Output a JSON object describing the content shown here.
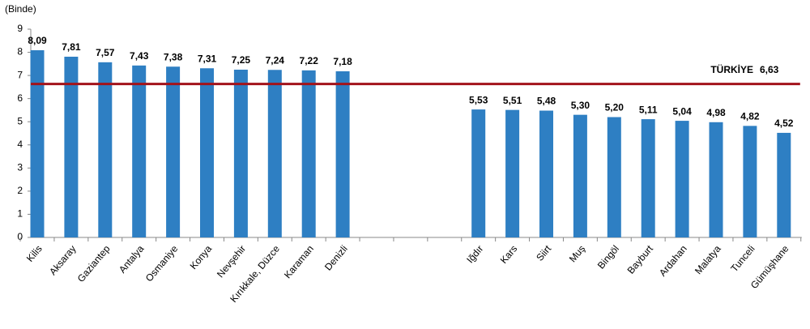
{
  "chart_data": {
    "type": "bar",
    "y_axis_label": "(Binde)",
    "categories": [
      "Kilis",
      "Aksaray",
      "Gaziantep",
      "Antalya",
      "Osmaniye",
      "Konya",
      "Nevşehir",
      "Kırıkkale, Düzce",
      "Karaman",
      "Denizli",
      null,
      null,
      null,
      "Iğdır",
      "Kars",
      "Siirt",
      "Muş",
      "Bingöl",
      "Bayburt",
      "Ardahan",
      "Malatya",
      "Tunceli",
      "Gümüşhane"
    ],
    "values": [
      8.09,
      7.81,
      7.57,
      7.43,
      7.38,
      7.31,
      7.25,
      7.24,
      7.22,
      7.18,
      null,
      null,
      null,
      5.53,
      5.51,
      5.48,
      5.3,
      5.2,
      5.11,
      5.04,
      4.98,
      4.82,
      4.52
    ],
    "value_labels": [
      "8,09",
      "7,81",
      "7,57",
      "7,43",
      "7,38",
      "7,31",
      "7,25",
      "7,24",
      "7,22",
      "7,18",
      null,
      null,
      null,
      "5,53",
      "5,51",
      "5,48",
      "5,30",
      "5,20",
      "5,11",
      "5,04",
      "4,98",
      "4,82",
      "4,52"
    ],
    "color": "#2e7fc3",
    "ylim": [
      0,
      9
    ],
    "yticks": [
      0,
      1,
      2,
      3,
      4,
      5,
      6,
      7,
      8,
      9
    ],
    "reference_line": {
      "label": "TÜRKİYE",
      "value": 6.63,
      "value_label": "6,63",
      "color": "#a3131b"
    }
  }
}
